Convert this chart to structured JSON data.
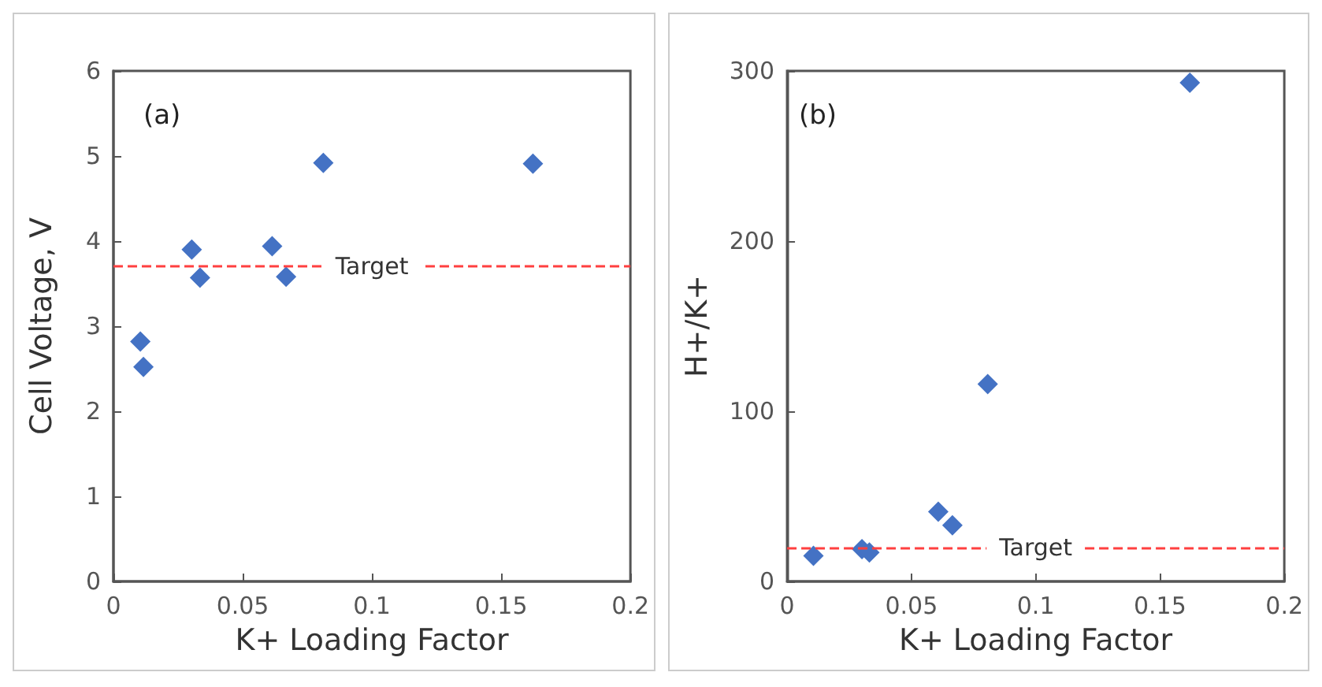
{
  "chart_data": [
    {
      "type": "scatter",
      "xlabel": "K+ Loading Factor",
      "ylabel": "Cell Voltage, V",
      "annotations": [
        "(a)"
      ],
      "marker": "diamond",
      "grid": false,
      "xlim": [
        0,
        0.2
      ],
      "xticks": [
        0,
        0.05,
        0.1,
        0.15,
        0.2
      ],
      "ylim": [
        0,
        6
      ],
      "yticks": [
        0,
        1,
        2,
        3,
        4,
        5,
        6
      ],
      "series": [
        {
          "color": "#4472c4",
          "x": [
            0.0104,
            0.0116,
            0.0303,
            0.0335,
            0.0614,
            0.0668,
            0.0812,
            0.1623
          ],
          "values": [
            2.82,
            2.52,
            3.9,
            3.57,
            3.94,
            3.58,
            4.92,
            4.91
          ]
        }
      ],
      "ref_lines": [
        {
          "axis": "y",
          "value": 3.7,
          "label": "Target",
          "color": "#ff4040",
          "line_style": "dashed"
        }
      ]
    },
    {
      "type": "scatter",
      "xlabel": "K+ Loading Factor",
      "ylabel": "H+/K+",
      "annotations": [
        "(b)"
      ],
      "marker": "diamond",
      "grid": false,
      "xlim": [
        0,
        0.2
      ],
      "xticks": [
        0,
        0.05,
        0.1,
        0.15,
        0.2
      ],
      "ylim": [
        0,
        300
      ],
      "yticks": [
        0,
        100,
        200,
        300
      ],
      "series": [
        {
          "color": "#4472c4",
          "x": [
            0.0106,
            0.0301,
            0.0331,
            0.0608,
            0.0665,
            0.0807,
            0.162
          ],
          "values": [
            15,
            19,
            17,
            41,
            33,
            116,
            293
          ]
        }
      ],
      "ref_lines": [
        {
          "axis": "y",
          "value": 20,
          "label": "Target",
          "color": "#ff4040",
          "line_style": "dashed"
        }
      ]
    }
  ]
}
